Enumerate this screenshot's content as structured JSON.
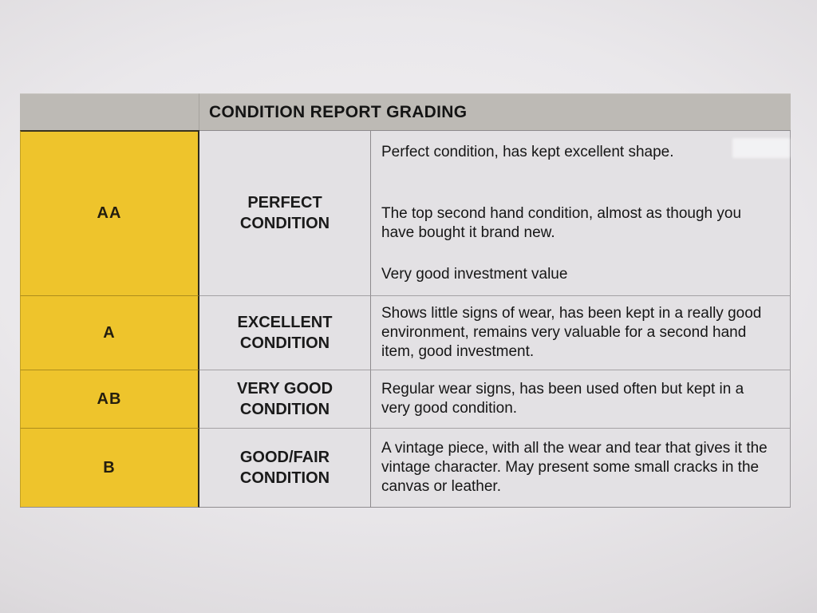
{
  "table": {
    "title": "CONDITION REPORT GRADING",
    "columns": [
      "grade",
      "condition",
      "description"
    ],
    "rows": [
      {
        "grade": "AA",
        "condition": "PERFECT CONDITION",
        "paragraphs": [
          "Perfect condition, has kept excellent shape.",
          "The top second hand condition, almost as though you have bought it brand new.",
          "Very good investment value"
        ]
      },
      {
        "grade": "A",
        "condition": "EXCELLENT CONDITION",
        "paragraphs": [
          "Shows little signs of wear, has been kept in a really good environment, remains very valuable for a second hand item, good investment."
        ]
      },
      {
        "grade": "AB",
        "condition": "VERY GOOD CONDITION",
        "paragraphs": [
          "Regular wear signs, has been used often but kept in a very good condition."
        ]
      },
      {
        "grade": "B",
        "condition": "GOOD/FAIR CONDITION",
        "paragraphs": [
          "A vintage piece, with all the wear and tear that gives it the vintage character. May present some small cracks in the canvas or leather."
        ]
      }
    ]
  },
  "colors": {
    "grade_column_yellow": "#eec42c",
    "header_gray": "#bdbab5",
    "cell_background": "#e3e1e4",
    "yellow_column_border": "#2e2a1e",
    "text": "#1b1b1b"
  }
}
